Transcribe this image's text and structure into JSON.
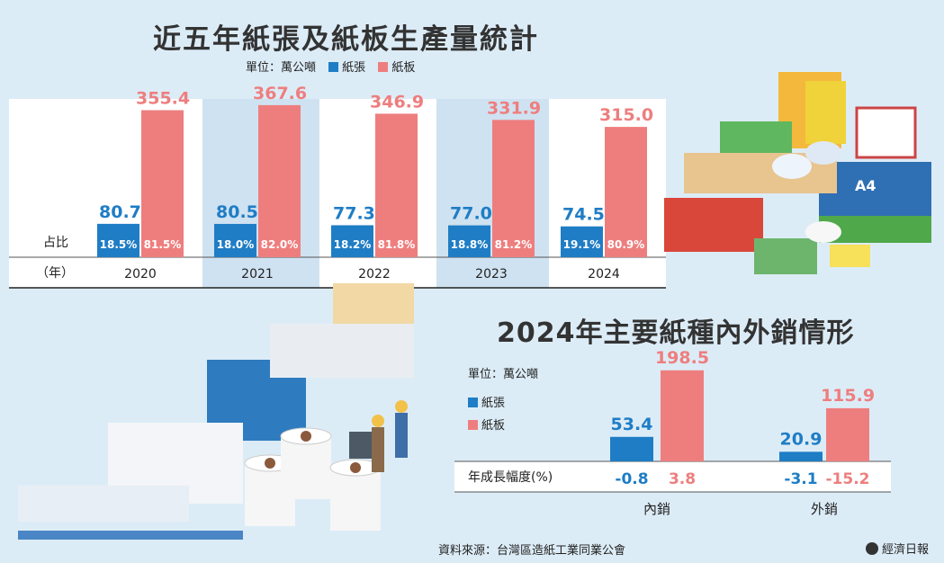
{
  "chart_data": [
    {
      "type": "bar",
      "title": "近五年紙張及紙板生產量統計",
      "unit_label": "單位：萬公噸",
      "categories": [
        "2020",
        "2021",
        "2022",
        "2023",
        "2024"
      ],
      "series": [
        {
          "name": "紙張",
          "values": [
            80.7,
            80.5,
            77.3,
            77.0,
            74.5
          ],
          "shares": [
            "18.5%",
            "18.0%",
            "18.2%",
            "18.8%",
            "19.1%"
          ]
        },
        {
          "name": "紙板",
          "values": [
            355.4,
            367.6,
            346.9,
            331.9,
            315.0
          ],
          "shares": [
            "81.5%",
            "82.0%",
            "81.8%",
            "81.2%",
            "80.9%"
          ]
        }
      ],
      "share_row_label": "占比",
      "year_row_label": "（年）",
      "value_labels": {
        "紙張": [
          "80.7",
          "80.5",
          "77.3",
          "77.0",
          "74.5"
        ],
        "紙板": [
          "355.4",
          "367.6",
          "346.9",
          "331.9",
          "315.0"
        ]
      }
    },
    {
      "type": "bar",
      "title": "2024年主要紙種內外銷情形",
      "unit_label": "單位：萬公噸",
      "categories": [
        "內銷",
        "外銷"
      ],
      "series": [
        {
          "name": "紙張",
          "values": [
            53.4,
            20.9
          ],
          "growth": [
            "-0.8",
            "-3.1"
          ]
        },
        {
          "name": "紙板",
          "values": [
            198.5,
            115.9
          ],
          "growth": [
            "3.8",
            "-15.2"
          ]
        }
      ],
      "growth_row_label": "年成長幅度(%)",
      "value_labels": {
        "紙張": [
          "53.4",
          "20.9"
        ],
        "紙板": [
          "198.5",
          "115.9"
        ]
      }
    }
  ],
  "colors": {
    "paper": "#1f7dc5",
    "board": "#ee7e7e",
    "background": "#dcecf7",
    "title": "#333333"
  },
  "footer": {
    "source": "資料來源：台灣區造紙工業同業公會",
    "publisher": "經濟日報"
  },
  "illustrations": [
    "paper-products-illustration",
    "paper-machine-illustration",
    "paper-rolls-illustration",
    "workers-illustration"
  ]
}
